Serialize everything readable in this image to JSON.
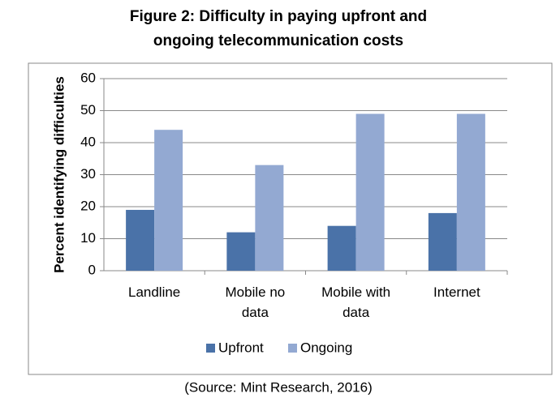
{
  "chart_data": {
    "type": "bar",
    "title": "Figure 2: Difficulty in paying upfront and ongoing telecommunication costs",
    "y_label": "Percent identifying difficulties",
    "categories": [
      "Landline",
      "Mobile no data",
      "Mobile with data",
      "Internet"
    ],
    "series": [
      {
        "name": "Upfront",
        "color": "#4a72a8",
        "values": [
          19,
          12,
          14,
          18
        ]
      },
      {
        "name": "Ongoing",
        "color": "#93a9d2",
        "values": [
          44,
          33,
          49,
          49
        ]
      }
    ],
    "ylim": [
      0,
      60
    ],
    "yticks": [
      0,
      10,
      20,
      30,
      40,
      50,
      60
    ],
    "grid": true,
    "legend": "bottom",
    "source": "(Source: Mint Research, 2016)"
  }
}
